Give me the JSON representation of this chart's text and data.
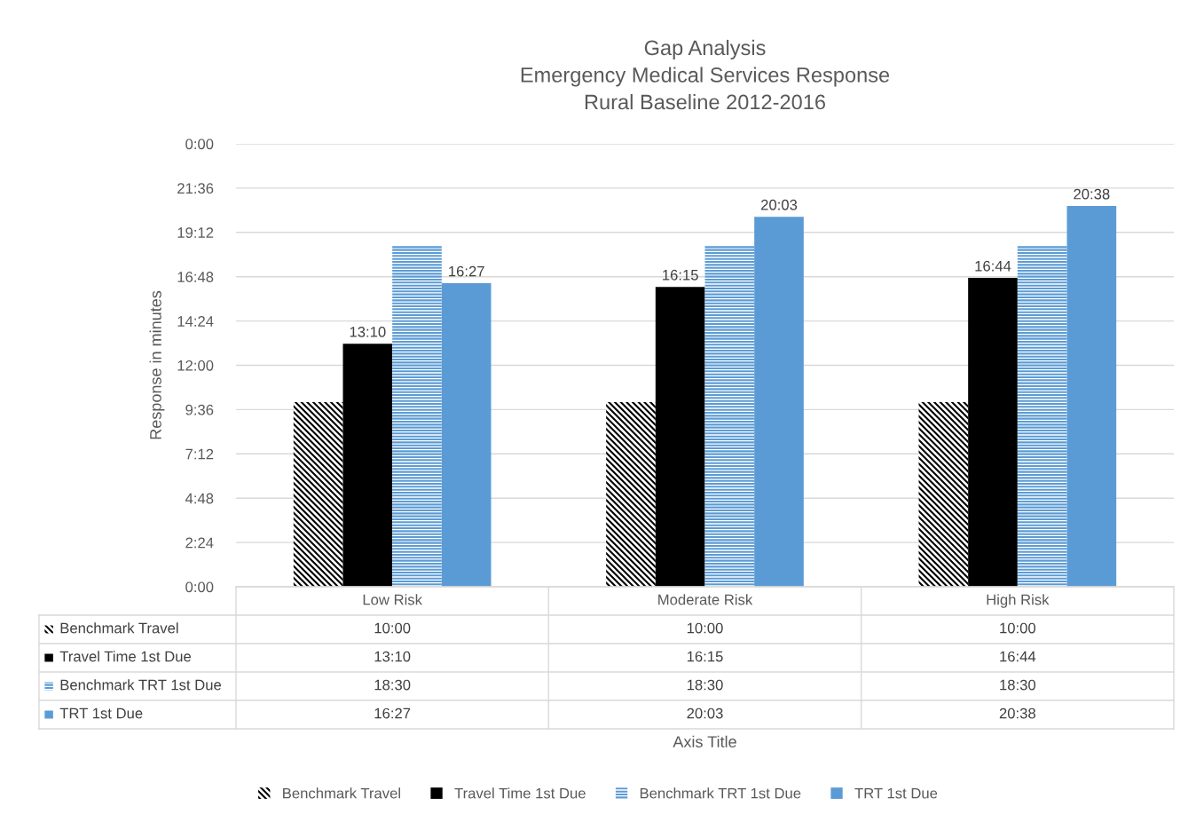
{
  "chart_data": {
    "type": "bar",
    "title": "Gap Analysis\nEmergency Medical Services Response\nRural Baseline 2012-2016",
    "ylabel": "Response in minutes",
    "annotations": [
      "Axis Title"
    ],
    "categories": [
      "Low Risk",
      "Moderate Risk",
      "High Risk"
    ],
    "series": [
      {
        "name": "Benchmark Travel",
        "color": "#000000",
        "values": [
          10,
          10,
          10
        ],
        "value_labels": [
          "10:00",
          "10:00",
          "10:00"
        ]
      },
      {
        "name": "Travel Time 1st Due",
        "color": "#000000",
        "values": [
          13.1667,
          16.25,
          16.7333
        ],
        "value_labels": [
          "13:10",
          "16:15",
          "16:44"
        ],
        "data_labels": true
      },
      {
        "name": "Benchmark TRT 1st Due",
        "color": "#5b9bd5",
        "values": [
          18.5,
          18.5,
          18.5
        ],
        "value_labels": [
          "18:30",
          "18:30",
          "18:30"
        ]
      },
      {
        "name": "TRT 1st Due",
        "color": "#5b9bd5",
        "values": [
          16.45,
          20.05,
          20.6333
        ],
        "value_labels": [
          "16:27",
          "20:03",
          "20:38"
        ],
        "data_labels": true
      }
    ],
    "ylim": [
      0,
      24
    ],
    "yticks": [
      {
        "value": 0,
        "label": "0:00"
      },
      {
        "value": 2.4,
        "label": "2:24"
      },
      {
        "value": 4.8,
        "label": "4:48"
      },
      {
        "value": 7.2,
        "label": "7:12"
      },
      {
        "value": 9.6,
        "label": "9:36"
      },
      {
        "value": 12,
        "label": "12:00"
      },
      {
        "value": 14.4,
        "label": "14:24"
      },
      {
        "value": 16.8,
        "label": "16:48"
      },
      {
        "value": 19.2,
        "label": "19:12"
      },
      {
        "value": 21.6,
        "label": "21:36"
      },
      {
        "value": 24,
        "label": "0:00"
      }
    ],
    "grid": "y",
    "legend": "bottom",
    "data_labels": true
  }
}
